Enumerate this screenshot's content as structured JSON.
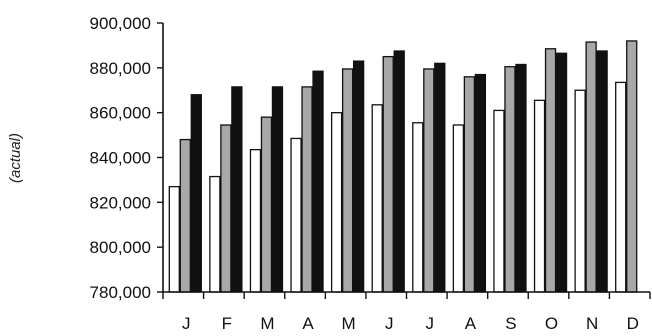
{
  "chart_data": {
    "type": "bar",
    "ylabel": "(actual)",
    "ylim": [
      780000,
      900000
    ],
    "y_ticks": [
      "900,000",
      "880,000",
      "860,000",
      "840,000",
      "820,000",
      "800,000",
      "780,000"
    ],
    "y_tick_values": [
      900000,
      880000,
      860000,
      840000,
      820000,
      800000,
      780000
    ],
    "categories": [
      "J",
      "F",
      "M",
      "A",
      "M",
      "J",
      "J",
      "A",
      "S",
      "O",
      "N",
      "D"
    ],
    "series": [
      {
        "color": "#ffffff",
        "values": [
          827000,
          831500,
          843500,
          848500,
          860000,
          863500,
          855500,
          854500,
          861000,
          865500,
          870000,
          873500
        ]
      },
      {
        "color": "#a8a8a8",
        "values": [
          848000,
          854500,
          858000,
          871500,
          879500,
          885000,
          879500,
          876000,
          880500,
          888500,
          891500,
          892000
        ]
      },
      {
        "color": "#111111",
        "values": [
          868000,
          871500,
          871500,
          878500,
          883000,
          887500,
          882000,
          877000,
          881500,
          886500,
          887500,
          null
        ]
      }
    ],
    "grid": false,
    "legend": "none"
  }
}
